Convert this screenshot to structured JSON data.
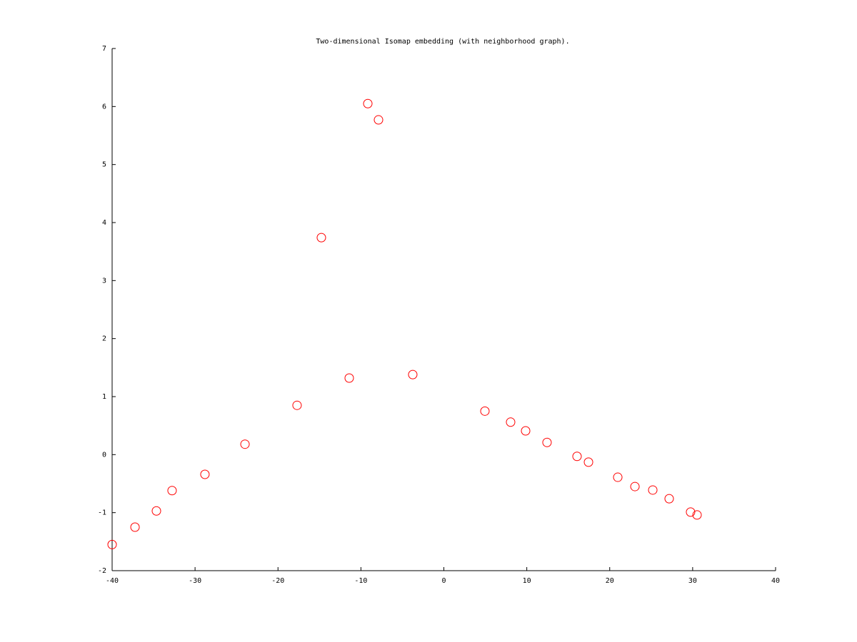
{
  "chart_data": {
    "type": "scatter",
    "title": "Two-dimensional Isomap embedding (with neighborhood graph).",
    "x": [
      -40,
      -37.24,
      -34.66,
      -32.77,
      -28.81,
      -23.98,
      -17.7,
      -14.77,
      -11.41,
      -9.17,
      -7.88,
      -3.75,
      4.95,
      8.05,
      9.86,
      12.44,
      16.06,
      17.44,
      20.97,
      23.04,
      25.19,
      27.17,
      29.75,
      30.53
    ],
    "values": [
      -1.55,
      -1.25,
      -0.97,
      -0.62,
      -0.34,
      0.18,
      0.85,
      3.74,
      1.32,
      6.05,
      5.77,
      1.38,
      0.75,
      0.56,
      0.41,
      0.21,
      -0.03,
      -0.13,
      -0.39,
      -0.55,
      -0.61,
      -0.76,
      -0.99,
      -1.04
    ],
    "color": "#ff0000",
    "xlim": [
      -40,
      40
    ],
    "xticks": [
      -40,
      -30,
      -20,
      -10,
      0,
      10,
      20,
      30,
      40
    ],
    "ylim": [
      -2,
      7
    ],
    "yticks": [
      -2,
      -1,
      0,
      1,
      2,
      3,
      4,
      5,
      6,
      7
    ],
    "grid": false
  }
}
